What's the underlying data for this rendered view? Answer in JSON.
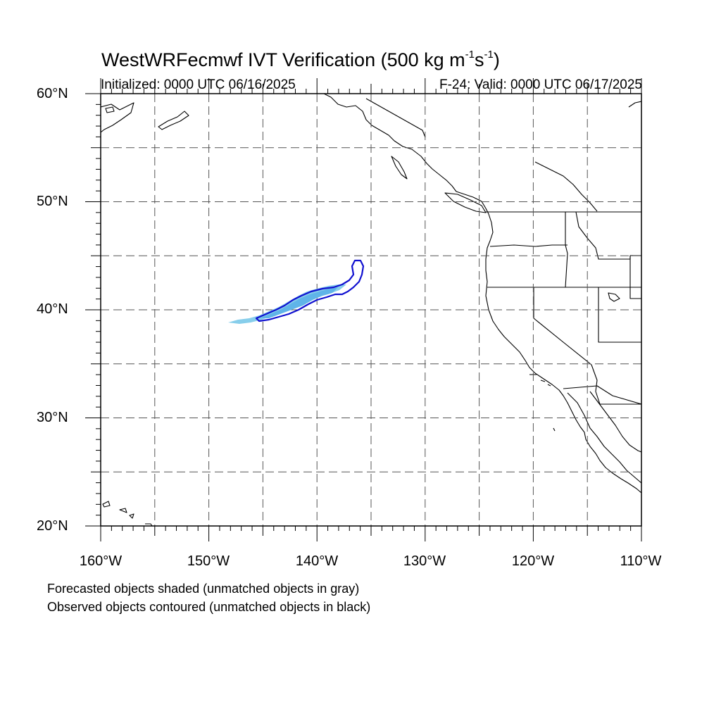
{
  "header": {
    "title_main": "WestWRFecmwf IVT Verification (500 kg m",
    "title_sup1": "-1",
    "title_mid": "s",
    "title_sup2": "-1",
    "title_end": ")",
    "initialized": "Initialized: 0000 UTC 06/16/2025",
    "valid": "F-24: Valid: 0000 UTC 06/17/2025"
  },
  "axes": {
    "lat_labels": [
      "60°N",
      "50°N",
      "40°N",
      "30°N",
      "20°N"
    ],
    "lon_labels": [
      "160°W",
      "150°W",
      "140°W",
      "130°W",
      "120°W",
      "110°W"
    ],
    "lat_range": [
      20,
      60
    ],
    "lon_range": [
      -160,
      -110
    ],
    "grid": "dashed every 5°"
  },
  "legend": {
    "line1": "Forecasted objects shaded (unmatched objects in gray)",
    "line2": "Observed objects contoured (unmatched objects in black)"
  },
  "objects": {
    "forecast_color": "#87ceeb",
    "forecast_fill_color": "#5fb4e8",
    "observed_color": "#1010d0",
    "forecast_region": "approx. 148°W–138°W, 39°N–42°N",
    "observed_region": "approx. 145°W–136°W, 39°N–44.5°N"
  },
  "colors": {
    "coastline": "#000000",
    "grid": "#555555"
  }
}
